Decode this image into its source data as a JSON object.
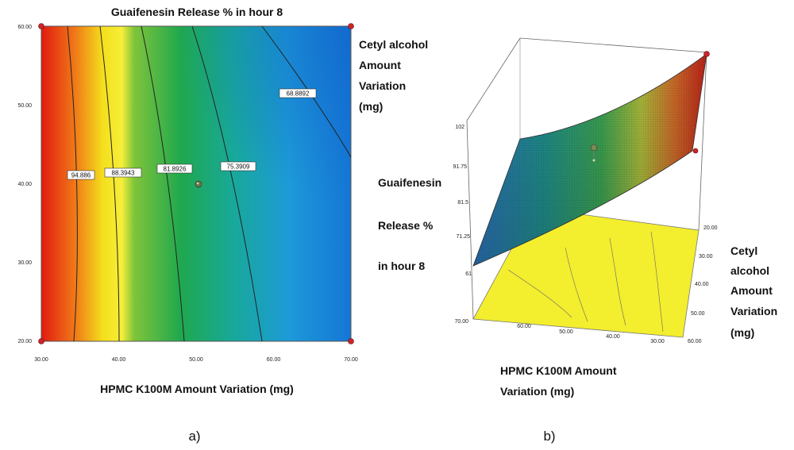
{
  "chart_data": [
    {
      "type": "contour",
      "title": "Guaifenesin Release % in hour 8",
      "xlabel": "HPMC K100M Amount Variation (mg)",
      "ylabel": "Cetyl alcohol Amount Variation (mg)",
      "xlim": [
        30,
        70
      ],
      "ylim": [
        20,
        60
      ],
      "xticks": [
        "30.00",
        "40.00",
        "50.00",
        "60.00",
        "70.00"
      ],
      "yticks": [
        "20.00",
        "30.00",
        "40.00",
        "50.00",
        "60.00"
      ],
      "contours": [
        {
          "label": "94.886",
          "value": 94.886
        },
        {
          "label": "88.3943",
          "value": 88.3943
        },
        {
          "label": "81.8926",
          "value": 81.8926
        },
        {
          "label": "75.3909",
          "value": 75.3909
        },
        {
          "label": "68.8892",
          "value": 68.8892
        }
      ],
      "design_point": {
        "x": 50,
        "y": 40
      },
      "corner_points": [
        [
          30,
          20
        ],
        [
          30,
          60
        ],
        [
          70,
          20
        ],
        [
          70,
          60
        ]
      ],
      "panel_label": "a)"
    },
    {
      "type": "surface3d",
      "zlabel_lines": [
        "Guaifenesin",
        "Release %",
        "in hour 8"
      ],
      "zticks": [
        "61",
        "71.25",
        "81.5",
        "91.75",
        "102"
      ],
      "xlabel_lines": [
        "HPMC K100M Amount",
        "Variation (mg)"
      ],
      "xticks": [
        "70.00",
        "60.00",
        "50.00",
        "40.00",
        "30.00"
      ],
      "ylabel_lines": [
        "Cetyl",
        "alcohol",
        "Amount",
        "Variation",
        "(mg)"
      ],
      "yticks": [
        "20.00",
        "30.00",
        "40.00",
        "50.00",
        "60.00"
      ],
      "panel_label": "b)"
    }
  ],
  "colors": {
    "low": "#1e8ce0",
    "mid": "#22a860",
    "high_yellow": "#f2e81c",
    "high_red": "#e01a10",
    "floor": "#f5f030"
  }
}
